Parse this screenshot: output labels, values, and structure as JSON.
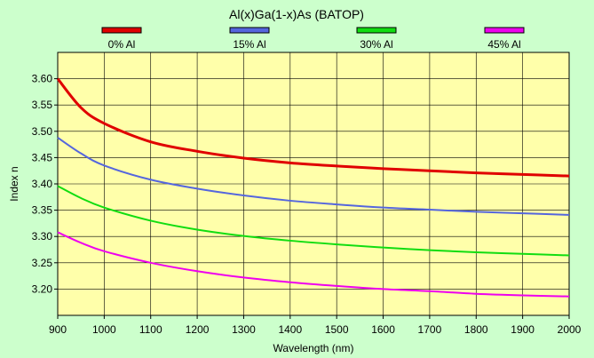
{
  "chart_data": {
    "type": "line",
    "title": "Al(x)Ga(1-x)As (BATOP)",
    "xlabel": "Wavelength (nm)",
    "ylabel": "Index n",
    "xlim": [
      900,
      2000
    ],
    "ylim": [
      3.15,
      3.65
    ],
    "xticks": [
      900,
      1000,
      1100,
      1200,
      1300,
      1400,
      1500,
      1600,
      1700,
      1800,
      1900,
      2000
    ],
    "yticks": [
      "3.20",
      "3.25",
      "3.30",
      "3.35",
      "3.40",
      "3.45",
      "3.50",
      "3.55",
      "3.60"
    ],
    "grid": true,
    "legend_position": "top",
    "plot_background": "#ffffaa",
    "page_background": "#ccffcc",
    "x": [
      900,
      950,
      1000,
      1100,
      1200,
      1300,
      1400,
      1500,
      1600,
      1700,
      1800,
      1900,
      2000
    ],
    "series": [
      {
        "name": "0% Al",
        "color": "#e00000",
        "values": [
          3.6,
          3.545,
          3.515,
          3.48,
          3.462,
          3.449,
          3.44,
          3.434,
          3.429,
          3.425,
          3.421,
          3.418,
          3.415
        ]
      },
      {
        "name": "15% Al",
        "color": "#5566dd",
        "values": [
          3.488,
          3.458,
          3.435,
          3.408,
          3.391,
          3.378,
          3.368,
          3.361,
          3.355,
          3.351,
          3.347,
          3.344,
          3.341
        ]
      },
      {
        "name": "30% Al",
        "color": "#11dd11",
        "values": [
          3.396,
          3.373,
          3.355,
          3.33,
          3.313,
          3.301,
          3.292,
          3.285,
          3.279,
          3.274,
          3.27,
          3.267,
          3.264
        ]
      },
      {
        "name": "45% Al",
        "color": "#ee00ee",
        "values": [
          3.308,
          3.288,
          3.272,
          3.25,
          3.234,
          3.222,
          3.213,
          3.206,
          3.2,
          3.196,
          3.191,
          3.188,
          3.186
        ]
      }
    ]
  }
}
